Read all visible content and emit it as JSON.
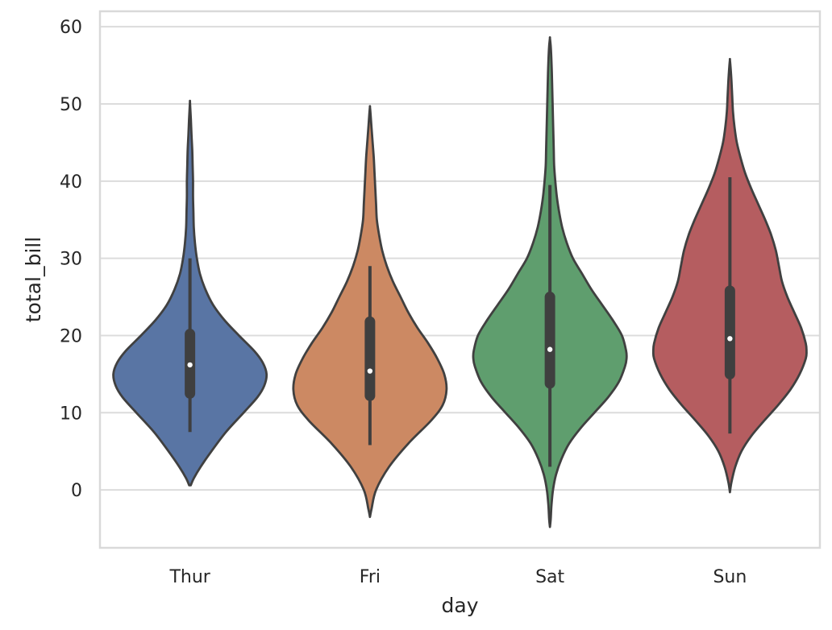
{
  "chart_data": {
    "type": "violin",
    "title": "",
    "xlabel": "day",
    "ylabel": "total_bill",
    "categories": [
      "Thur",
      "Fri",
      "Sat",
      "Sun"
    ],
    "ylim": [
      -7.5,
      62
    ],
    "yticks": [
      0,
      10,
      20,
      30,
      40,
      50,
      60
    ],
    "grid": true,
    "legend": "none",
    "series": [
      {
        "category": "Thur",
        "color": "#5975A4",
        "min": 7.5,
        "q1": 12.5,
        "median": 16.2,
        "q3": 20.2,
        "max": 30,
        "density": [
          [
            0.6,
            0.01
          ],
          [
            1.5,
            0.05
          ],
          [
            3,
            0.14
          ],
          [
            5,
            0.28
          ],
          [
            7.5,
            0.47
          ],
          [
            10,
            0.7
          ],
          [
            12,
            0.88
          ],
          [
            13.5,
            0.97
          ],
          [
            15,
            1.0
          ],
          [
            16.5,
            0.95
          ],
          [
            18,
            0.84
          ],
          [
            20,
            0.64
          ],
          [
            22,
            0.45
          ],
          [
            24,
            0.3
          ],
          [
            26,
            0.2
          ],
          [
            28,
            0.13
          ],
          [
            30,
            0.09
          ],
          [
            32,
            0.065
          ],
          [
            34,
            0.05
          ],
          [
            36,
            0.045
          ],
          [
            38,
            0.04
          ],
          [
            40,
            0.04
          ],
          [
            42,
            0.035
          ],
          [
            44,
            0.03
          ],
          [
            46,
            0.02
          ],
          [
            48,
            0.012
          ],
          [
            49.5,
            0.004
          ],
          [
            50.3,
            0
          ]
        ]
      },
      {
        "category": "Fri",
        "color": "#CC8963",
        "min": 5.8,
        "q1": 12.2,
        "median": 15.4,
        "q3": 21.8,
        "max": 29,
        "density": [
          [
            -3.5,
            0.0
          ],
          [
            -2.5,
            0.02
          ],
          [
            0,
            0.08
          ],
          [
            3,
            0.25
          ],
          [
            6,
            0.5
          ],
          [
            9,
            0.8
          ],
          [
            11,
            0.95
          ],
          [
            13,
            1.0
          ],
          [
            15,
            0.97
          ],
          [
            17,
            0.88
          ],
          [
            19,
            0.76
          ],
          [
            21,
            0.62
          ],
          [
            23,
            0.5
          ],
          [
            25,
            0.4
          ],
          [
            27,
            0.3
          ],
          [
            29,
            0.22
          ],
          [
            31,
            0.16
          ],
          [
            33,
            0.12
          ],
          [
            35,
            0.09
          ],
          [
            37,
            0.08
          ],
          [
            39,
            0.07
          ],
          [
            41,
            0.06
          ],
          [
            43,
            0.05
          ],
          [
            45,
            0.035
          ],
          [
            47,
            0.02
          ],
          [
            48.7,
            0.008
          ],
          [
            49.6,
            0
          ]
        ]
      },
      {
        "category": "Sat",
        "color": "#5F9E6E",
        "min": 3,
        "q1": 13.8,
        "median": 18.2,
        "q3": 25,
        "max": 39.5,
        "density": [
          [
            -4.8,
            0
          ],
          [
            -3.8,
            0.01
          ],
          [
            -2,
            0.02
          ],
          [
            0,
            0.04
          ],
          [
            2,
            0.08
          ],
          [
            4,
            0.15
          ],
          [
            6,
            0.25
          ],
          [
            8,
            0.4
          ],
          [
            10,
            0.58
          ],
          [
            12,
            0.76
          ],
          [
            14,
            0.9
          ],
          [
            16,
            0.98
          ],
          [
            17,
            1.0
          ],
          [
            18,
            0.995
          ],
          [
            20,
            0.94
          ],
          [
            22,
            0.82
          ],
          [
            24,
            0.68
          ],
          [
            26,
            0.54
          ],
          [
            28,
            0.42
          ],
          [
            30,
            0.3
          ],
          [
            32,
            0.22
          ],
          [
            34,
            0.16
          ],
          [
            36,
            0.12
          ],
          [
            38,
            0.09
          ],
          [
            40,
            0.07
          ],
          [
            42,
            0.055
          ],
          [
            44,
            0.05
          ],
          [
            46,
            0.045
          ],
          [
            48,
            0.04
          ],
          [
            50,
            0.035
          ],
          [
            52,
            0.03
          ],
          [
            54,
            0.025
          ],
          [
            56,
            0.018
          ],
          [
            57.5,
            0.01
          ],
          [
            58.5,
            0
          ]
        ]
      },
      {
        "category": "Sun",
        "color": "#B55D60",
        "min": 7.3,
        "q1": 15,
        "median": 19.6,
        "q3": 25.8,
        "max": 40.5,
        "density": [
          [
            -0.3,
            0
          ],
          [
            1,
            0.02
          ],
          [
            3,
            0.07
          ],
          [
            5,
            0.15
          ],
          [
            7,
            0.28
          ],
          [
            9,
            0.45
          ],
          [
            11,
            0.63
          ],
          [
            13,
            0.79
          ],
          [
            15,
            0.91
          ],
          [
            17,
            0.99
          ],
          [
            18,
            1.0
          ],
          [
            19,
            0.99
          ],
          [
            21,
            0.93
          ],
          [
            23,
            0.84
          ],
          [
            25,
            0.75
          ],
          [
            27,
            0.68
          ],
          [
            29,
            0.64
          ],
          [
            31,
            0.6
          ],
          [
            33,
            0.54
          ],
          [
            35,
            0.46
          ],
          [
            37,
            0.37
          ],
          [
            39,
            0.28
          ],
          [
            41,
            0.2
          ],
          [
            43,
            0.14
          ],
          [
            45,
            0.09
          ],
          [
            47,
            0.06
          ],
          [
            49,
            0.04
          ],
          [
            51,
            0.03
          ],
          [
            53,
            0.02
          ],
          [
            54.8,
            0.008
          ],
          [
            55.7,
            0
          ]
        ]
      }
    ]
  }
}
